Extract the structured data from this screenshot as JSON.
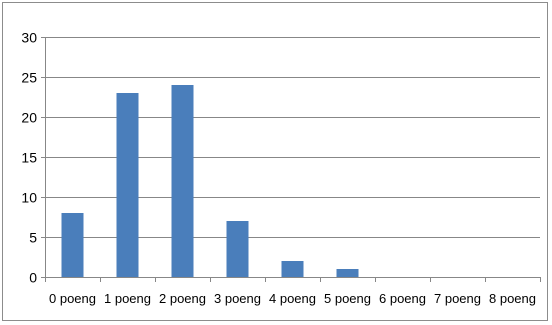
{
  "chart_data": {
    "type": "bar",
    "categories": [
      "0 poeng",
      "1 poeng",
      "2 poeng",
      "3 poeng",
      "4 poeng",
      "5 poeng",
      "6 poeng",
      "7 poeng",
      "8 poeng"
    ],
    "values": [
      8,
      23,
      24,
      7,
      2,
      1,
      0,
      0,
      0
    ],
    "title": "",
    "xlabel": "",
    "ylabel": "",
    "ylim": [
      0,
      30
    ],
    "yticks": [
      0,
      5,
      10,
      15,
      20,
      25,
      30
    ],
    "grid": true,
    "legend": "none",
    "bar_color": "#4a7ebb",
    "grid_color": "#878787"
  }
}
